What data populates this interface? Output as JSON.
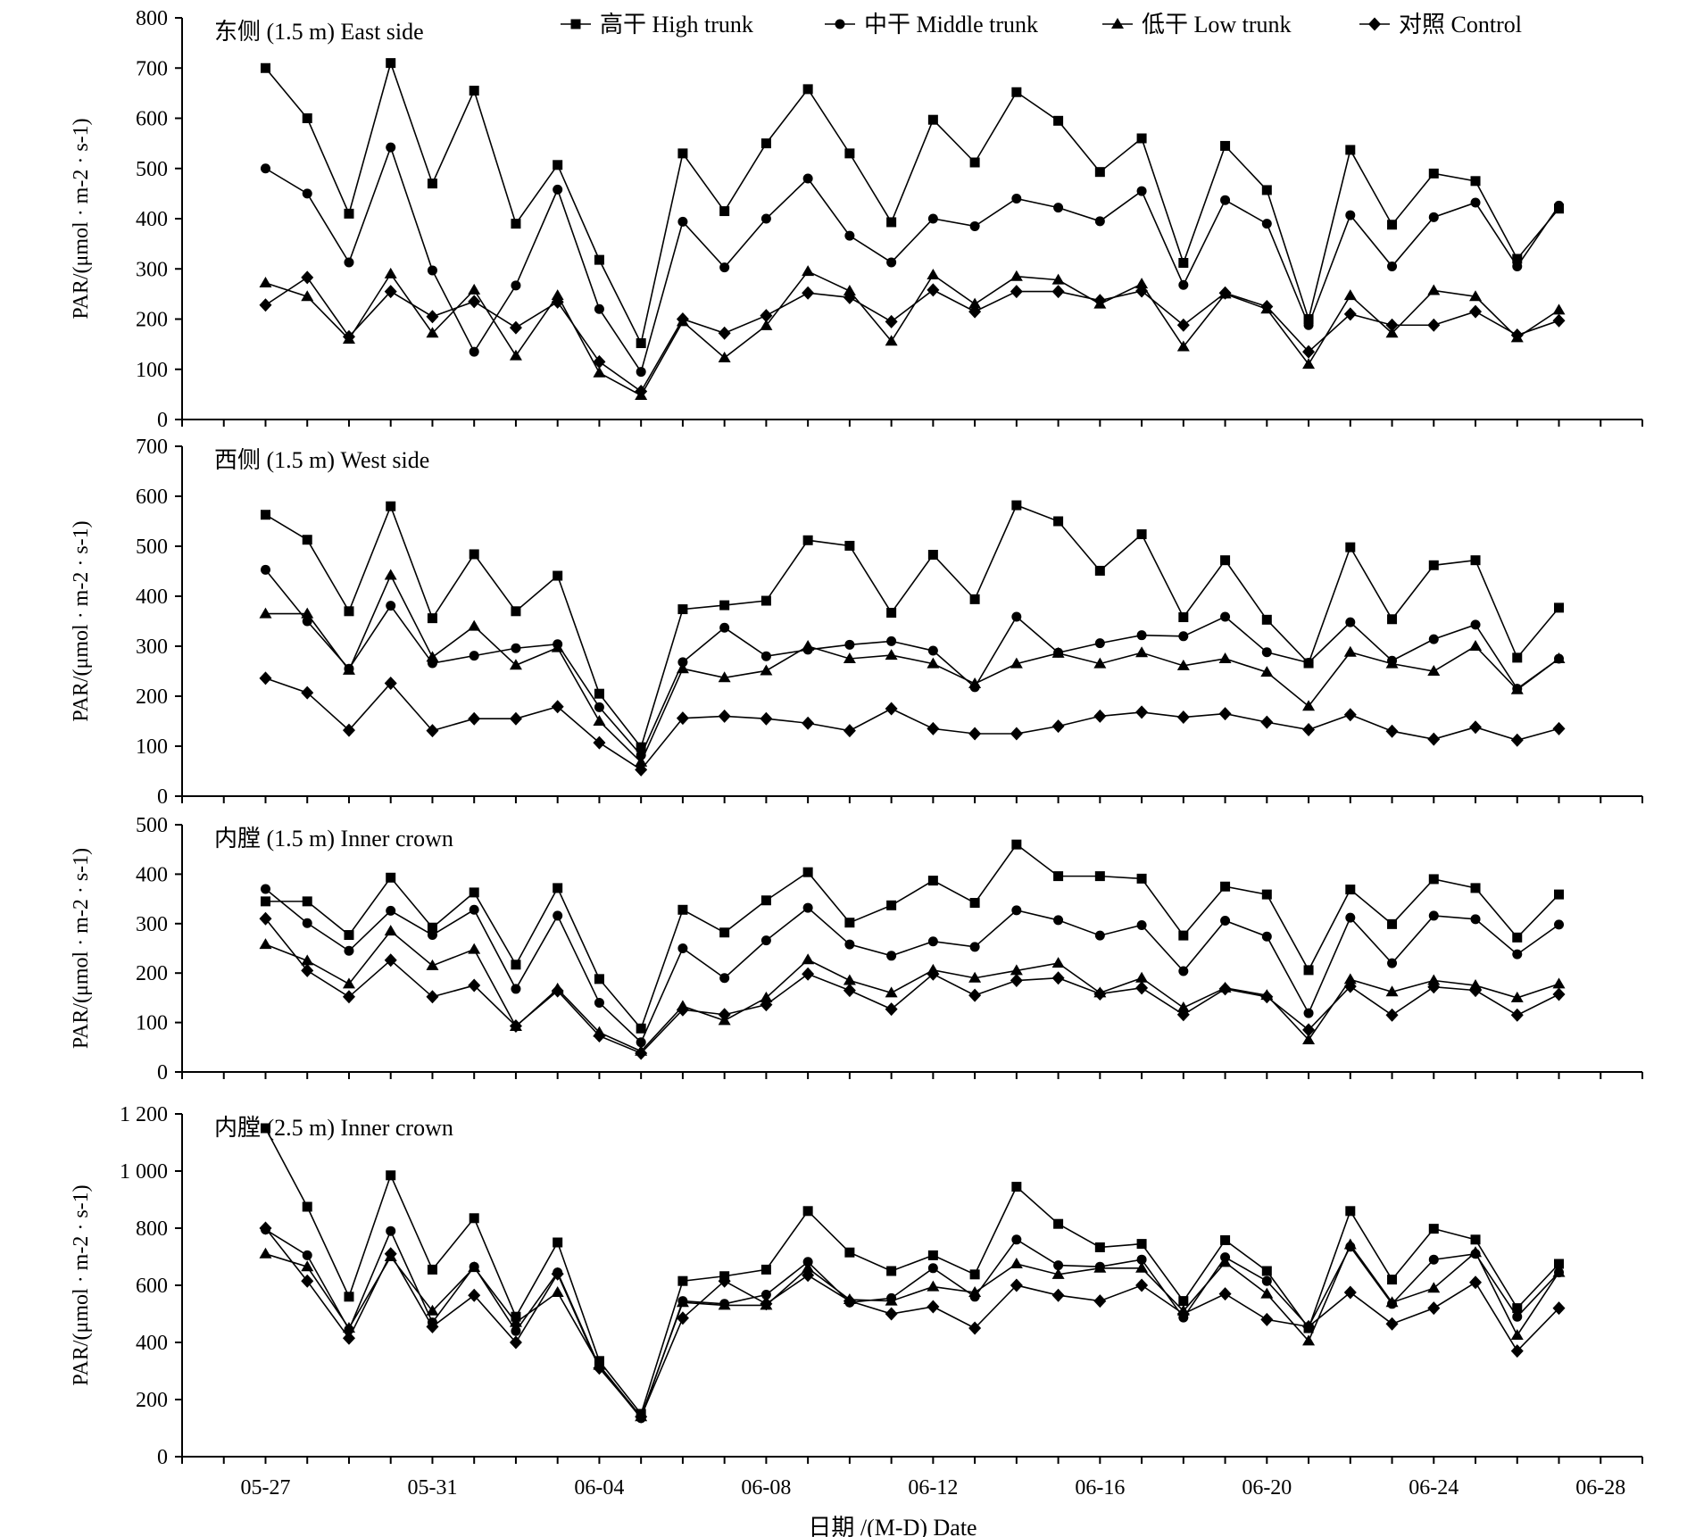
{
  "legend": {
    "position": "top",
    "items": [
      {
        "marker": "square",
        "label": "高干  High trunk"
      },
      {
        "marker": "circle",
        "label": "中干  Middle trunk"
      },
      {
        "marker": "triangle",
        "label": "低干  Low trunk"
      },
      {
        "marker": "diamond",
        "label": "对照  Control"
      }
    ]
  },
  "shared_x_axis": {
    "label": "日期 /(M-D) Date",
    "ticks": [
      "05-27",
      "05-31",
      "06-04",
      "06-08",
      "06-12",
      "06-16",
      "06-20",
      "06-24",
      "06-28"
    ],
    "range": [
      "05-25",
      "06-29"
    ]
  },
  "line_color": "#000000",
  "chart_data": [
    {
      "type": "line",
      "title": "东侧 (1.5 m)  East side",
      "ylabel": "PAR/(μmol · m-2 · s-1)",
      "ylim": [
        0,
        800
      ],
      "yticks": [
        0,
        100,
        200,
        300,
        400,
        500,
        600,
        700,
        800
      ],
      "xlabel": "日期 /(M-D) Date",
      "grid": false,
      "x": [
        "05-27",
        "05-28",
        "05-29",
        "05-30",
        "05-31",
        "06-01",
        "06-02",
        "06-03",
        "06-04",
        "06-05",
        "06-06",
        "06-07",
        "06-08",
        "06-09",
        "06-10",
        "06-11",
        "06-12",
        "06-13",
        "06-14",
        "06-15",
        "06-16",
        "06-17",
        "06-18",
        "06-19",
        "06-20",
        "06-21",
        "06-22",
        "06-23",
        "06-24",
        "06-25",
        "06-26",
        "06-27"
      ],
      "series": [
        {
          "name": "高干  High trunk",
          "marker": "square",
          "values": [
            700,
            600,
            410,
            710,
            470,
            655,
            390,
            507,
            318,
            152,
            530,
            415,
            550,
            658,
            530,
            393,
            597,
            512,
            652,
            595,
            493,
            560,
            312,
            545,
            457,
            200,
            537,
            388,
            490,
            475,
            320,
            420
          ]
        },
        {
          "name": "中干  Middle trunk",
          "marker": "circle",
          "values": [
            500,
            450,
            313,
            542,
            297,
            135,
            267,
            458,
            220,
            95,
            394,
            303,
            400,
            480,
            366,
            313,
            400,
            385,
            440,
            422,
            395,
            455,
            268,
            437,
            390,
            188,
            407,
            305,
            403,
            432,
            305,
            426
          ]
        },
        {
          "name": "低干  Low trunk",
          "marker": "triangle",
          "values": [
            272,
            245,
            160,
            290,
            172,
            258,
            127,
            247,
            93,
            48,
            195,
            123,
            187,
            295,
            256,
            156,
            288,
            230,
            285,
            278,
            230,
            270,
            145,
            250,
            220,
            110,
            247,
            172,
            257,
            245,
            163,
            218
          ]
        },
        {
          "name": "对照  Control",
          "marker": "diamond",
          "values": [
            228,
            283,
            165,
            255,
            205,
            235,
            183,
            234,
            115,
            56,
            200,
            172,
            207,
            252,
            243,
            195,
            258,
            215,
            255,
            255,
            237,
            256,
            188,
            252,
            225,
            135,
            210,
            188,
            188,
            215,
            168,
            197
          ]
        }
      ]
    },
    {
      "type": "line",
      "title": "西侧 (1.5 m) West side",
      "ylabel": "PAR/(μmol · m-2 · s-1)",
      "ylim": [
        0,
        700
      ],
      "yticks": [
        0,
        100,
        200,
        300,
        400,
        500,
        600,
        700
      ],
      "xlabel": "日期 /(M-D) Date",
      "grid": false,
      "x": [
        "05-27",
        "05-28",
        "05-29",
        "05-30",
        "05-31",
        "06-01",
        "06-02",
        "06-03",
        "06-04",
        "06-05",
        "06-06",
        "06-07",
        "06-08",
        "06-09",
        "06-10",
        "06-11",
        "06-12",
        "06-13",
        "06-14",
        "06-15",
        "06-16",
        "06-17",
        "06-18",
        "06-19",
        "06-20",
        "06-21",
        "06-22",
        "06-23",
        "06-24",
        "06-25",
        "06-26",
        "06-27"
      ],
      "series": [
        {
          "name": "高干  High trunk",
          "marker": "square",
          "values": [
            563,
            513,
            370,
            580,
            356,
            484,
            370,
            441,
            205,
            98,
            374,
            382,
            391,
            512,
            501,
            367,
            483,
            394,
            582,
            550,
            451,
            524,
            358,
            472,
            353,
            266,
            498,
            354,
            462,
            472,
            277,
            377
          ]
        },
        {
          "name": "中干  Middle trunk",
          "marker": "circle",
          "values": [
            453,
            350,
            255,
            381,
            266,
            281,
            296,
            304,
            178,
            82,
            268,
            337,
            280,
            293,
            303,
            310,
            291,
            218,
            359,
            287,
            306,
            322,
            320,
            359,
            288,
            267,
            348,
            271,
            314,
            343,
            215,
            275
          ]
        },
        {
          "name": "低干  Low trunk",
          "marker": "triangle",
          "values": [
            365,
            365,
            252,
            442,
            278,
            340,
            262,
            297,
            150,
            68,
            255,
            237,
            251,
            300,
            275,
            282,
            265,
            225,
            265,
            286,
            265,
            287,
            261,
            275,
            248,
            180,
            288,
            265,
            250,
            300,
            213,
            275
          ]
        },
        {
          "name": "对照  Control",
          "marker": "diamond",
          "values": [
            236,
            207,
            132,
            226,
            131,
            155,
            155,
            179,
            107,
            53,
            156,
            160,
            155,
            146,
            131,
            175,
            135,
            125,
            125,
            140,
            160,
            168,
            158,
            165,
            148,
            133,
            163,
            130,
            114,
            138,
            112,
            135
          ]
        }
      ]
    },
    {
      "type": "line",
      "title": "内膛 (1.5 m) Inner crown",
      "ylabel": "PAR/(μmol · m-2 · s-1)",
      "ylim": [
        0,
        500
      ],
      "yticks": [
        0,
        100,
        200,
        300,
        400,
        500
      ],
      "xlabel": "日期 /(M-D) Date",
      "grid": false,
      "x": [
        "05-27",
        "05-28",
        "05-29",
        "05-30",
        "05-31",
        "06-01",
        "06-02",
        "06-03",
        "06-04",
        "06-05",
        "06-06",
        "06-07",
        "06-08",
        "06-09",
        "06-10",
        "06-11",
        "06-12",
        "06-13",
        "06-14",
        "06-15",
        "06-16",
        "06-17",
        "06-18",
        "06-19",
        "06-20",
        "06-21",
        "06-22",
        "06-23",
        "06-24",
        "06-25",
        "06-26",
        "06-27"
      ],
      "series": [
        {
          "name": "高干  High trunk",
          "marker": "square",
          "values": [
            345,
            345,
            277,
            393,
            292,
            363,
            217,
            372,
            188,
            88,
            328,
            282,
            347,
            404,
            302,
            337,
            387,
            342,
            460,
            396,
            396,
            391,
            276,
            375,
            359,
            206,
            369,
            299,
            390,
            372,
            272,
            359
          ]
        },
        {
          "name": "中干  Middle trunk",
          "marker": "circle",
          "values": [
            370,
            301,
            245,
            326,
            277,
            328,
            168,
            316,
            140,
            60,
            250,
            190,
            266,
            332,
            258,
            235,
            264,
            253,
            327,
            307,
            276,
            297,
            204,
            306,
            274,
            119,
            312,
            220,
            316,
            309,
            238,
            298
          ]
        },
        {
          "name": "低干  Low trunk",
          "marker": "triangle",
          "values": [
            258,
            225,
            178,
            285,
            215,
            248,
            92,
            168,
            80,
            42,
            133,
            104,
            150,
            227,
            185,
            160,
            206,
            190,
            205,
            220,
            160,
            190,
            130,
            170,
            155,
            65,
            187,
            162,
            185,
            175,
            150,
            178
          ]
        },
        {
          "name": "对照  Control",
          "marker": "diamond",
          "values": [
            310,
            205,
            152,
            226,
            152,
            175,
            93,
            164,
            73,
            38,
            126,
            116,
            136,
            198,
            165,
            127,
            198,
            155,
            185,
            190,
            158,
            170,
            116,
            168,
            152,
            85,
            173,
            115,
            172,
            165,
            115,
            157
          ]
        }
      ]
    },
    {
      "type": "line",
      "title": "内膛  (2.5 m) Inner crown",
      "ylabel": "PAR/(μmol · m-2 · s-1)",
      "ylim": [
        0,
        1200
      ],
      "yticks": [
        0,
        200,
        400,
        600,
        800,
        1000,
        1200
      ],
      "ytick_labels": [
        "0",
        "200",
        "400",
        "600",
        "800",
        "1 000",
        "1 200"
      ],
      "xlabel": "日期 /(M-D) Date",
      "grid": false,
      "x": [
        "05-27",
        "05-28",
        "05-29",
        "05-30",
        "05-31",
        "06-01",
        "06-02",
        "06-03",
        "06-04",
        "06-05",
        "06-06",
        "06-07",
        "06-08",
        "06-09",
        "06-10",
        "06-11",
        "06-12",
        "06-13",
        "06-14",
        "06-15",
        "06-16",
        "06-17",
        "06-18",
        "06-19",
        "06-20",
        "06-21",
        "06-22",
        "06-23",
        "06-24",
        "06-25",
        "06-26",
        "06-27"
      ],
      "series": [
        {
          "name": "高干  High trunk",
          "marker": "square",
          "values": [
            1150,
            875,
            560,
            985,
            655,
            835,
            490,
            750,
            335,
            150,
            615,
            632,
            655,
            860,
            715,
            650,
            705,
            638,
            945,
            815,
            733,
            745,
            545,
            758,
            650,
            450,
            860,
            620,
            798,
            760,
            520,
            675
          ]
        },
        {
          "name": "中干  Middle trunk",
          "marker": "circle",
          "values": [
            795,
            705,
            445,
            790,
            470,
            665,
            440,
            645,
            315,
            135,
            545,
            535,
            567,
            682,
            540,
            555,
            660,
            560,
            760,
            670,
            665,
            690,
            487,
            698,
            615,
            455,
            735,
            535,
            690,
            710,
            490,
            645
          ]
        },
        {
          "name": "低干  Low trunk",
          "marker": "triangle",
          "values": [
            710,
            665,
            450,
            700,
            510,
            662,
            470,
            575,
            320,
            140,
            540,
            530,
            530,
            660,
            550,
            545,
            595,
            575,
            675,
            638,
            660,
            660,
            510,
            680,
            570,
            405,
            742,
            540,
            590,
            715,
            425,
            645
          ]
        },
        {
          "name": "对照  Control",
          "marker": "diamond",
          "values": [
            800,
            615,
            415,
            710,
            455,
            565,
            400,
            640,
            310,
            140,
            485,
            615,
            535,
            635,
            545,
            500,
            525,
            450,
            600,
            565,
            545,
            600,
            500,
            570,
            480,
            455,
            575,
            465,
            520,
            610,
            370,
            520
          ]
        }
      ]
    }
  ]
}
